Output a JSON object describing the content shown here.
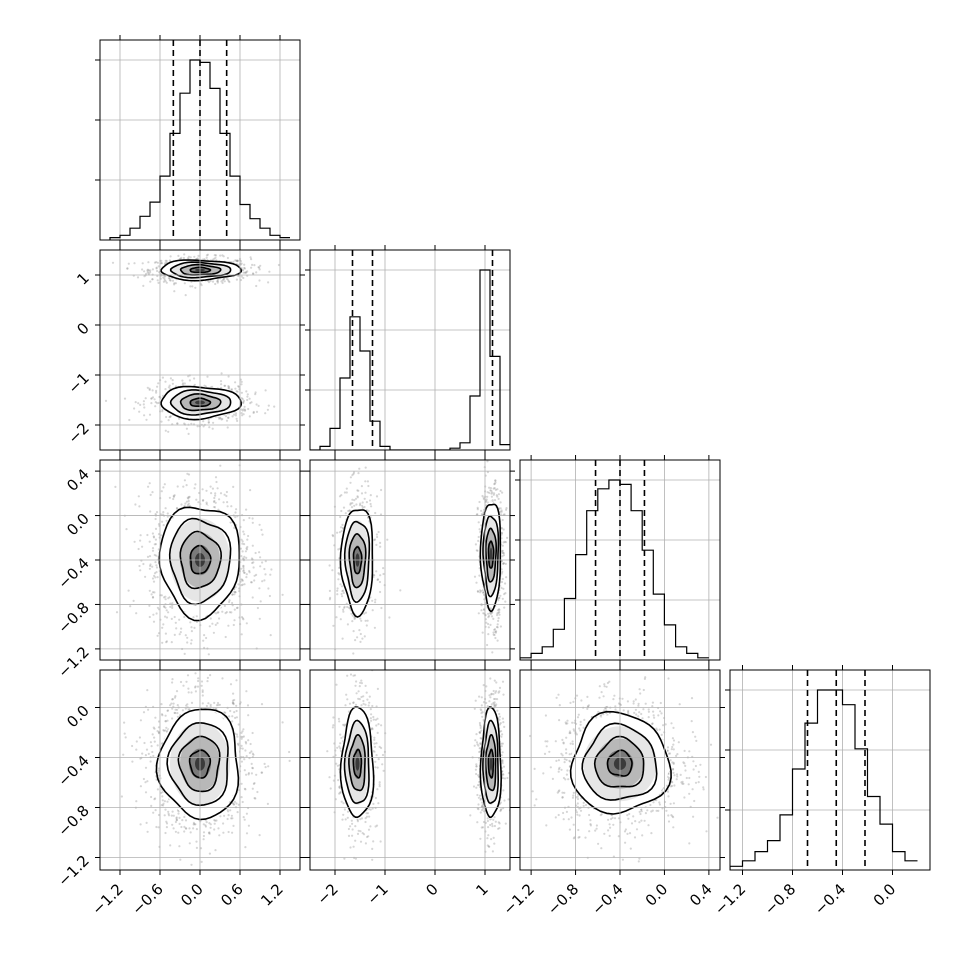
{
  "chart_data": {
    "type": "corner",
    "grid": true,
    "ticks": {
      "p0": {
        "values": [
          -1.2,
          -0.6,
          0.0,
          0.6,
          1.2
        ],
        "labels": [
          "−1.2",
          "−0.6",
          "0.0",
          "0.6",
          "1.2"
        ],
        "range": [
          -1.5,
          1.5
        ]
      },
      "p1": {
        "values": [
          -2,
          -1,
          0,
          1
        ],
        "labels": [
          "−2",
          "−1",
          "0",
          "1"
        ],
        "range": [
          -2.5,
          1.5
        ]
      },
      "p2": {
        "values": [
          -1.2,
          -0.8,
          -0.4,
          0.0,
          0.4
        ],
        "labels": [
          "−1.2",
          "−0.8",
          "−0.4",
          "0.0",
          "0.4"
        ],
        "range": [
          -1.3,
          0.5
        ]
      },
      "p3": {
        "values": [
          -1.2,
          -0.8,
          -0.4,
          0.0
        ],
        "labels": [
          "−1.2",
          "−0.8",
          "−0.4",
          "0.0"
        ],
        "range": [
          -1.3,
          0.3
        ]
      }
    },
    "diagonal_histograms": [
      {
        "param": "p0",
        "bin_edges": [
          -1.35,
          -1.2,
          -1.05,
          -0.9,
          -0.75,
          -0.6,
          -0.45,
          -0.3,
          -0.15,
          0.0,
          0.15,
          0.3,
          0.45,
          0.6,
          0.75,
          0.9,
          1.05,
          1.2,
          1.35
        ],
        "counts": [
          1,
          2,
          5,
          10,
          16,
          27,
          45,
          62,
          76,
          75,
          64,
          45,
          27,
          15,
          9,
          5,
          2,
          1
        ],
        "quantiles": [
          -0.4,
          0.0,
          0.4
        ]
      },
      {
        "param": "p1",
        "bin_edges": [
          -2.5,
          -2.3,
          -2.1,
          -1.9,
          -1.7,
          -1.5,
          -1.3,
          -1.1,
          -0.9,
          -0.7,
          -0.5,
          -0.3,
          -0.1,
          0.1,
          0.3,
          0.5,
          0.7,
          0.9,
          1.1,
          1.3,
          1.5
        ],
        "counts": [
          0,
          2,
          12,
          40,
          74,
          55,
          16,
          2,
          0,
          0,
          0,
          0,
          0,
          0,
          1,
          4,
          30,
          100,
          52,
          3
        ],
        "quantiles": [
          -1.65,
          -1.25,
          1.15
        ]
      },
      {
        "param": "p2",
        "bin_edges": [
          -1.3,
          -1.2,
          -1.1,
          -1.0,
          -0.9,
          -0.8,
          -0.7,
          -0.6,
          -0.5,
          -0.4,
          -0.3,
          -0.2,
          -0.1,
          0.0,
          0.1,
          0.2,
          0.3,
          0.4
        ],
        "counts": [
          1,
          3,
          6,
          14,
          28,
          48,
          68,
          78,
          82,
          80,
          68,
          50,
          30,
          16,
          6,
          3,
          1
        ],
        "quantiles": [
          -0.62,
          -0.4,
          -0.18
        ]
      },
      {
        "param": "p3",
        "bin_edges": [
          -1.3,
          -1.2,
          -1.1,
          -1.0,
          -0.9,
          -0.8,
          -0.7,
          -0.6,
          -0.5,
          -0.4,
          -0.3,
          -0.2,
          -0.1,
          0.0,
          0.1,
          0.2
        ],
        "counts": [
          2,
          5,
          10,
          16,
          30,
          55,
          80,
          98,
          98,
          90,
          66,
          40,
          25,
          10,
          5
        ],
        "quantiles": [
          -0.68,
          -0.45,
          -0.22
        ]
      }
    ],
    "joint_panels": [
      {
        "x": "p0",
        "y": "p1",
        "modes": [
          {
            "cx": 0.0,
            "cy": 1.1,
            "sx": 0.3,
            "sy": 0.1,
            "weight": 0.55
          },
          {
            "cx": 0.0,
            "cy": -1.55,
            "sx": 0.3,
            "sy": 0.16,
            "weight": 0.45
          }
        ]
      },
      {
        "x": "p0",
        "y": "p2",
        "modes": [
          {
            "cx": 0.0,
            "cy": -0.4,
            "sx": 0.3,
            "sy": 0.25,
            "weight": 1.0
          }
        ]
      },
      {
        "x": "p1",
        "y": "p2",
        "modes": [
          {
            "cx": -1.55,
            "cy": -0.4,
            "sx": 0.16,
            "sy": 0.24,
            "weight": 0.45
          },
          {
            "cx": 1.12,
            "cy": -0.35,
            "sx": 0.1,
            "sy": 0.24,
            "weight": 0.55
          }
        ]
      },
      {
        "x": "p0",
        "y": "p3",
        "modes": [
          {
            "cx": 0.0,
            "cy": -0.45,
            "sx": 0.3,
            "sy": 0.22,
            "weight": 1.0
          }
        ]
      },
      {
        "x": "p1",
        "y": "p3",
        "modes": [
          {
            "cx": -1.55,
            "cy": -0.45,
            "sx": 0.16,
            "sy": 0.22,
            "weight": 0.45
          },
          {
            "cx": 1.12,
            "cy": -0.45,
            "sx": 0.1,
            "sy": 0.22,
            "weight": 0.55
          }
        ]
      },
      {
        "x": "p2",
        "y": "p3",
        "modes": [
          {
            "cx": -0.4,
            "cy": -0.45,
            "sx": 0.22,
            "sy": 0.2,
            "weight": 1.0
          }
        ]
      }
    ],
    "contour_levels_sigma": [
      0.5,
      1.0,
      1.5,
      2.0
    ]
  }
}
